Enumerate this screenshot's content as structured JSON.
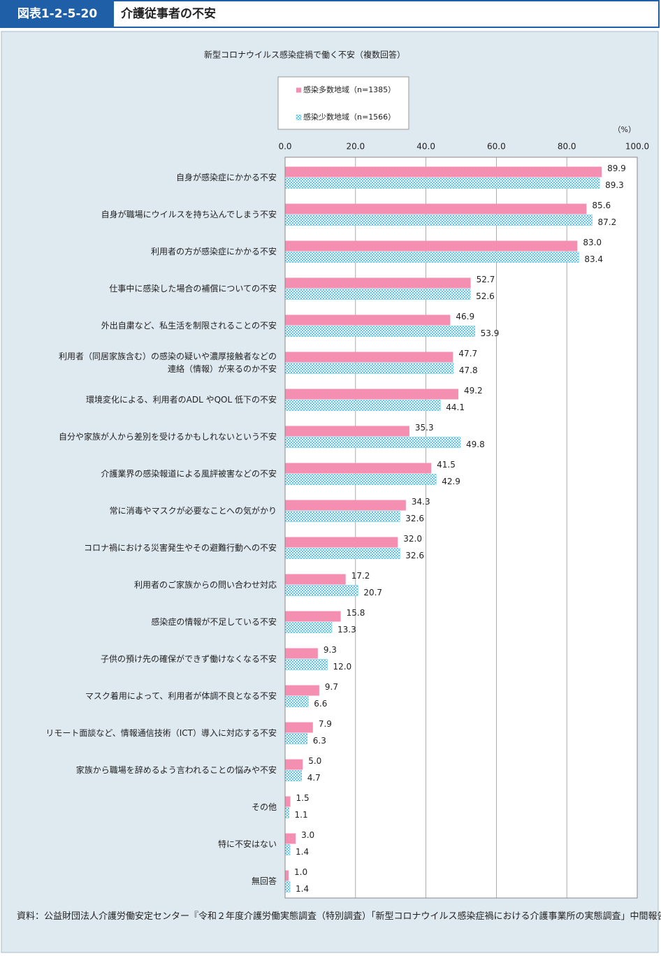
{
  "header": {
    "label": "図表1-2-5-20",
    "title": "介護従事者の不安"
  },
  "chart_data": {
    "type": "hbar",
    "title": "新型コロナウイルス感染症禍で働く不安（複数回答）",
    "unit_label": "（%）",
    "categories": [
      "自身が感染症にかかる不安",
      "自身が職場にウイルスを持ち込んでしまう不安",
      "利用者の方が感染症にかかる不安",
      "仕事中に感染した場合の補償についての不安",
      "外出自粛など、私生活を制限されることの不安",
      "利用者（同居家族含む）の感染の疑いや濃厚接触者などの\n連絡（情報）が来るのか不安",
      "環境変化による、利用者のADL やQOL 低下の不安",
      "自分や家族が人から差別を受けるかもしれないという不安",
      "介護業界の感染報道による風評被害などの不安",
      "常に消毒やマスクが必要なことへの気がかり",
      "コロナ禍における災害発生やその避難行動への不安",
      "利用者のご家族からの問い合わせ対応",
      "感染症の情報が不足している不安",
      "子供の預け先の確保ができず働けなくなる不安",
      "マスク着用によって、利用者が体調不良となる不安",
      "リモート面談など、情報通信技術（ICT）導入に対応する不安",
      "家族から職場を辞めるよう言われることの悩みや不安",
      "その他",
      "特に不安はない",
      "無回答"
    ],
    "series": [
      {
        "name": "感染多数地域（n=1385）",
        "color": "#f48fb1",
        "pattern": false,
        "values": [
          89.9,
          85.6,
          83.0,
          52.7,
          46.9,
          47.7,
          49.2,
          35.3,
          41.5,
          34.3,
          32.0,
          17.2,
          15.8,
          9.3,
          9.7,
          7.9,
          5.0,
          1.5,
          3.0,
          1.0
        ],
        "value_labels": [
          "89.9",
          "85.6",
          "83.0",
          "52.7",
          "46.9",
          "47.7",
          "49.2",
          "35.3",
          "41.5",
          "34.3",
          "32.0",
          "17.2",
          "15.8",
          "9.3",
          "9.7",
          "7.9",
          "5.0",
          "1.5",
          "3.0",
          "1.0"
        ]
      },
      {
        "name": "感染少数地域（n=1566）",
        "color": "#5cc6e4",
        "pattern": true,
        "values": [
          89.3,
          87.2,
          83.4,
          52.6,
          53.9,
          47.8,
          44.1,
          49.8,
          42.9,
          32.6,
          32.6,
          20.7,
          13.3,
          12.0,
          6.6,
          6.3,
          4.7,
          1.1,
          1.4,
          1.4
        ],
        "value_labels": [
          "89.3",
          "87.2",
          "83.4",
          "52.6",
          "53.9",
          "47.8",
          "44.1",
          "49.8",
          "42.9",
          "32.6",
          "32.6",
          "20.7",
          "13.3",
          "12.0",
          "6.6",
          "6.3",
          "4.7",
          "1.1",
          "1.4",
          "1.4"
        ]
      }
    ],
    "xlim": [
      0,
      100
    ],
    "xticks": [
      {
        "value": 0,
        "label": "0.0"
      },
      {
        "value": 20,
        "label": "20.0"
      },
      {
        "value": 40,
        "label": "40.0"
      },
      {
        "value": 60,
        "label": "60.0"
      },
      {
        "value": 80,
        "label": "80.0"
      },
      {
        "value": 100,
        "label": "100.0"
      }
    ],
    "grid": true
  },
  "source": "資料：公益財団法人介護労働安定センター『令和２年度介護労働実態調査（特別調査）「新型コロナウイルス感染症禍における介護事業所の実態調査」中間報告』"
}
